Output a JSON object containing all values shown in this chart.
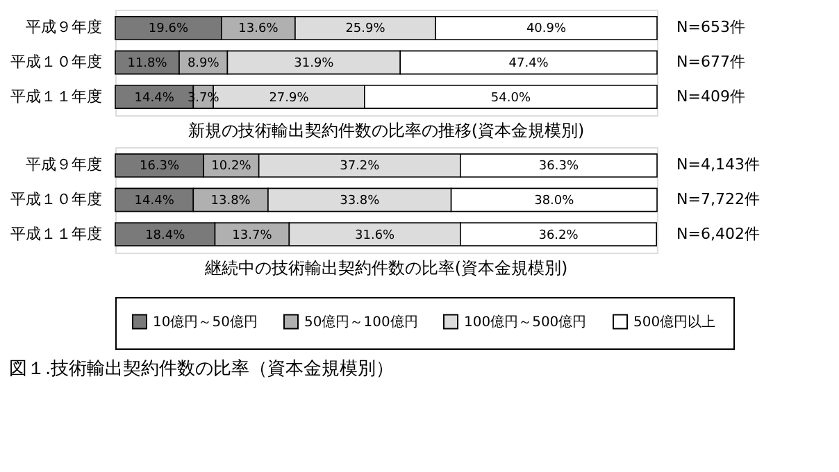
{
  "chart_data": [
    {
      "type": "bar",
      "orientation": "horizontal",
      "stacked": true,
      "title": "新規の技術輸出契約件数の比率の推移(資本金規模別)",
      "categories": [
        "平成９年度",
        "平成１０年度",
        "平成１１年度"
      ],
      "xlim": [
        0,
        100
      ],
      "tick_labels": "y",
      "legend": "bottom",
      "series": [
        {
          "name": "10億円～50億円",
          "color": "#7a7a7a",
          "values": [
            19.6,
            11.8,
            14.4
          ],
          "value_labels": [
            "19.6%",
            "11.8%",
            "14.4%"
          ]
        },
        {
          "name": "50億円～100億円",
          "color": "#b0b0b0",
          "values": [
            13.6,
            8.9,
            3.7
          ],
          "value_labels": [
            "13.6%",
            "8.9%",
            "3.7%"
          ]
        },
        {
          "name": "100億円～500億円",
          "color": "#dcdcdc",
          "values": [
            25.9,
            31.9,
            27.9
          ],
          "value_labels": [
            "25.9%",
            "31.9%",
            "27.9%"
          ]
        },
        {
          "name": "500億円以上",
          "color": "#ffffff",
          "values": [
            40.9,
            47.4,
            54.0
          ],
          "value_labels": [
            "40.9%",
            "47.4%",
            "54.0%"
          ]
        }
      ],
      "annotations": [
        "N=653件",
        "N=677件",
        "N=409件"
      ]
    },
    {
      "type": "bar",
      "orientation": "horizontal",
      "stacked": true,
      "title": "継続中の技術輸出契約件数の比率(資本金規模別)",
      "categories": [
        "平成９年度",
        "平成１０年度",
        "平成１１年度"
      ],
      "xlim": [
        0,
        100
      ],
      "tick_labels": "y",
      "legend": "bottom",
      "series": [
        {
          "name": "10億円～50億円",
          "color": "#7a7a7a",
          "values": [
            16.3,
            14.4,
            18.4
          ],
          "value_labels": [
            "16.3%",
            "14.4%",
            "18.4%"
          ]
        },
        {
          "name": "50億円～100億円",
          "color": "#b0b0b0",
          "values": [
            10.2,
            13.8,
            13.7
          ],
          "value_labels": [
            "10.2%",
            "13.8%",
            "13.7%"
          ]
        },
        {
          "name": "100億円～500億円",
          "color": "#dcdcdc",
          "values": [
            37.2,
            33.8,
            31.6
          ],
          "value_labels": [
            "37.2%",
            "33.8%",
            "31.6%"
          ]
        },
        {
          "name": "500億円以上",
          "color": "#ffffff",
          "values": [
            36.3,
            38.0,
            36.2
          ],
          "value_labels": [
            "36.3%",
            "38.0%",
            "36.2%"
          ]
        }
      ],
      "annotations": [
        "N=4,143件",
        "N=7,722件",
        "N=6,402件",
        "図１.技術輸出契約件数の比率（資本金規模別）"
      ]
    }
  ]
}
